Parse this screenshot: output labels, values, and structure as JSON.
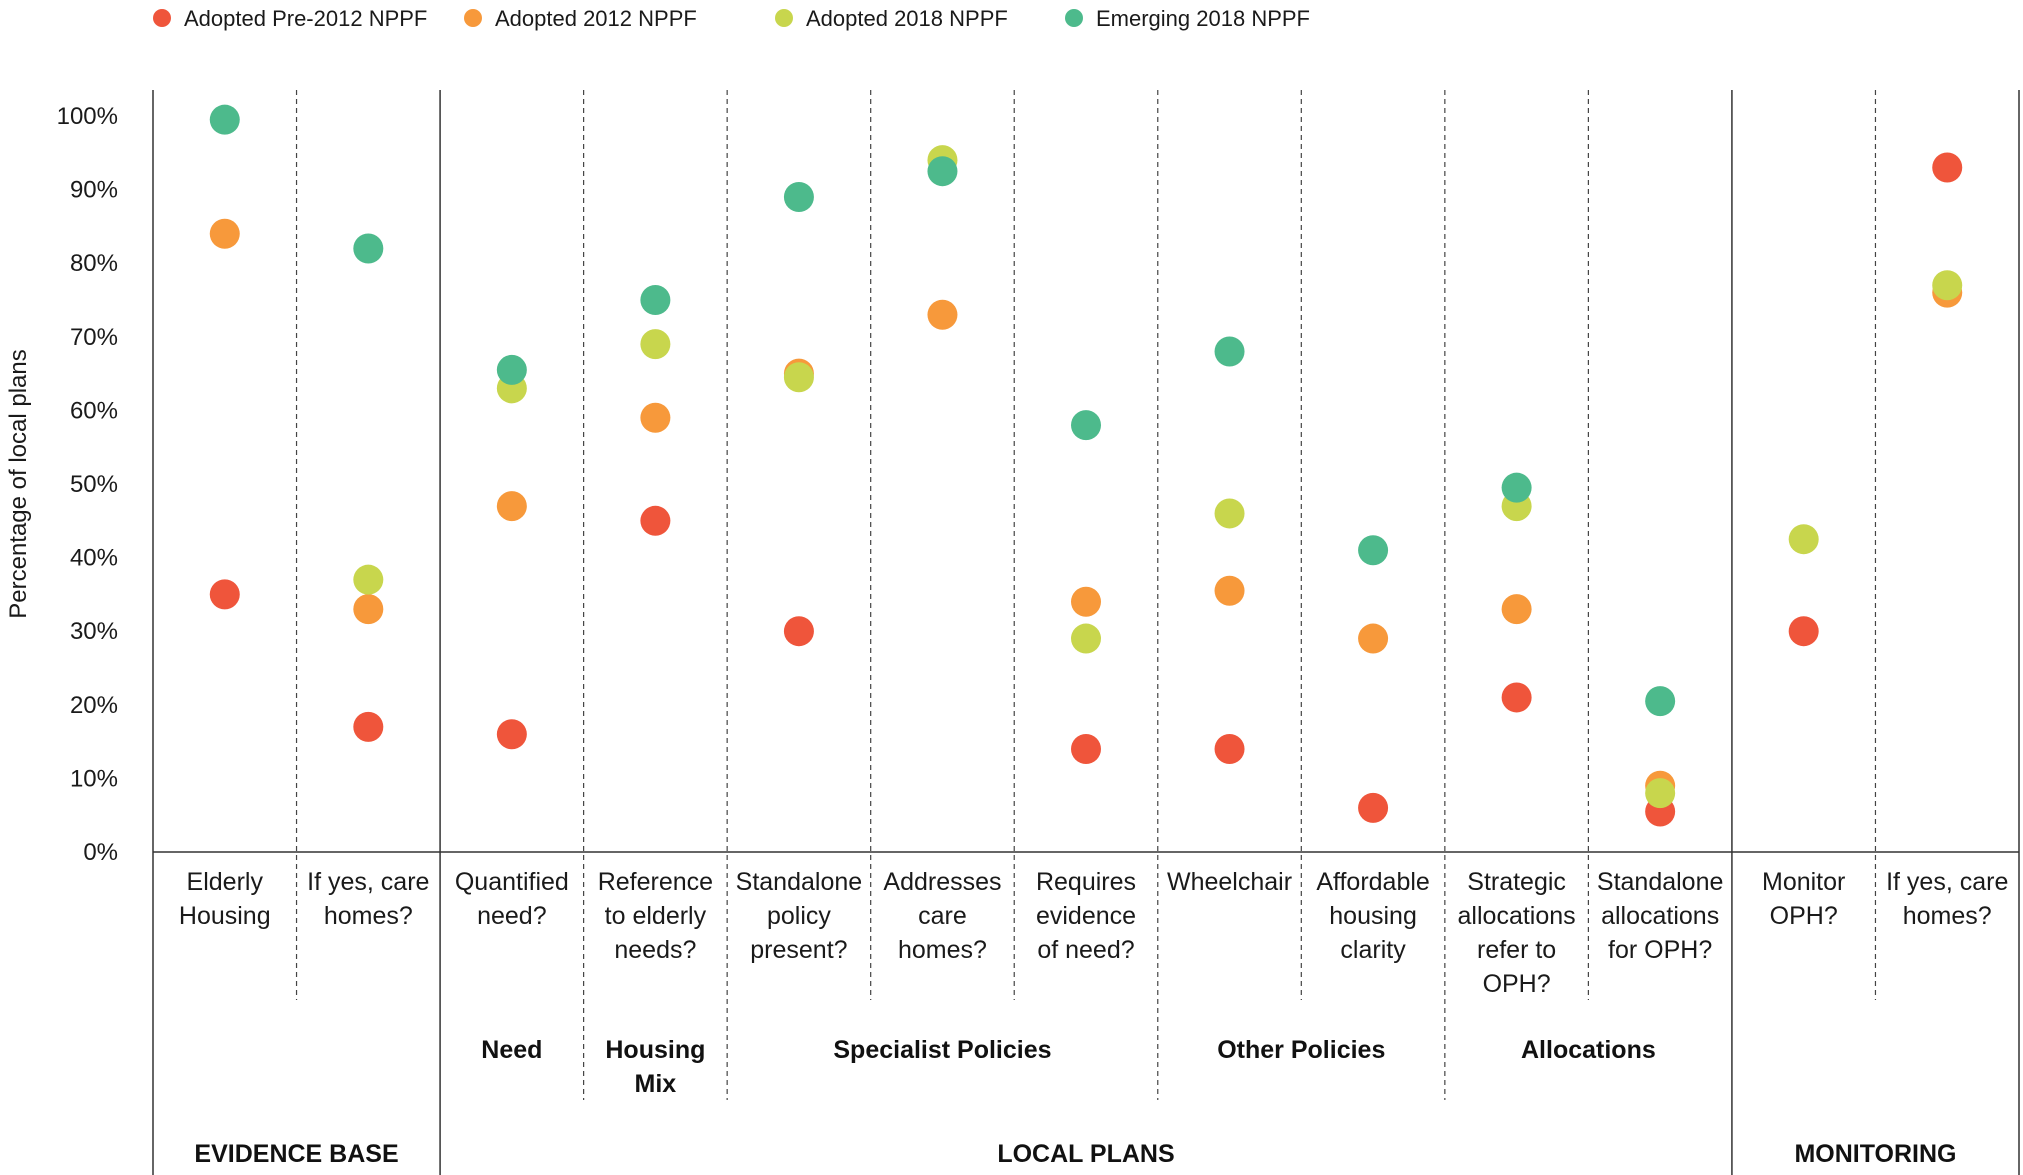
{
  "chart_data": {
    "type": "scatter",
    "ylabel": "Percentage of local plans",
    "ylim": [
      0,
      100
    ],
    "yticks": [
      "0%",
      "10%",
      "20%",
      "30%",
      "40%",
      "50%",
      "60%",
      "70%",
      "80%",
      "90%",
      "100%"
    ],
    "legend_position": "top-left",
    "categories": [
      [
        "Elderly",
        "Housing"
      ],
      [
        "If yes, care",
        "homes?"
      ],
      [
        "Quantified",
        "need?"
      ],
      [
        "Reference",
        "to elderly",
        "needs?"
      ],
      [
        "Standalone",
        "policy",
        "present?"
      ],
      [
        "Addresses",
        "care",
        "homes?"
      ],
      [
        "Requires",
        "evidence",
        "of need?"
      ],
      [
        "Wheelchair"
      ],
      [
        "Affordable",
        "housing",
        "clarity"
      ],
      [
        "Strategic",
        "allocations",
        "refer to",
        "OPH?"
      ],
      [
        "Standalone",
        "allocations",
        "for OPH?"
      ],
      [
        "Monitor",
        "OPH?"
      ],
      [
        "If yes, care",
        "homes?"
      ]
    ],
    "groups": [
      {
        "label": [
          "Need"
        ],
        "span": [
          2,
          2
        ]
      },
      {
        "label": [
          "Housing",
          "Mix"
        ],
        "span": [
          3,
          3
        ]
      },
      {
        "label": [
          "Specialist Policies"
        ],
        "span": [
          4,
          6
        ]
      },
      {
        "label": [
          "Other Policies"
        ],
        "span": [
          7,
          8
        ]
      },
      {
        "label": [
          "Allocations"
        ],
        "span": [
          9,
          10
        ]
      }
    ],
    "sections": [
      {
        "label": "EVIDENCE BASE",
        "span": [
          0,
          1
        ]
      },
      {
        "label": "LOCAL PLANS",
        "span": [
          2,
          10
        ]
      },
      {
        "label": "MONITORING",
        "span": [
          11,
          12
        ]
      }
    ],
    "series": [
      {
        "name": "Adopted Pre-2012 NPPF",
        "color": "#ef553b",
        "values": [
          35,
          17,
          16,
          45,
          30,
          null,
          14,
          14,
          6,
          21,
          5.5,
          30,
          93
        ]
      },
      {
        "name": "Adopted 2012 NPPF",
        "color": "#f7993b",
        "values": [
          84,
          33,
          47,
          59,
          65,
          73,
          34,
          35.5,
          29,
          33,
          9,
          null,
          76
        ]
      },
      {
        "name": "Adopted 2018 NPPF",
        "color": "#c8d64d",
        "values": [
          null,
          37,
          63,
          69,
          64.5,
          94,
          29,
          46,
          null,
          47,
          8,
          42.5,
          77
        ]
      },
      {
        "name": "Emerging 2018 NPPF",
        "color": "#4dba8c",
        "values": [
          99.5,
          82,
          65.5,
          75,
          89,
          92.5,
          58,
          68,
          41,
          49.5,
          20.5,
          null,
          null
        ]
      }
    ]
  }
}
